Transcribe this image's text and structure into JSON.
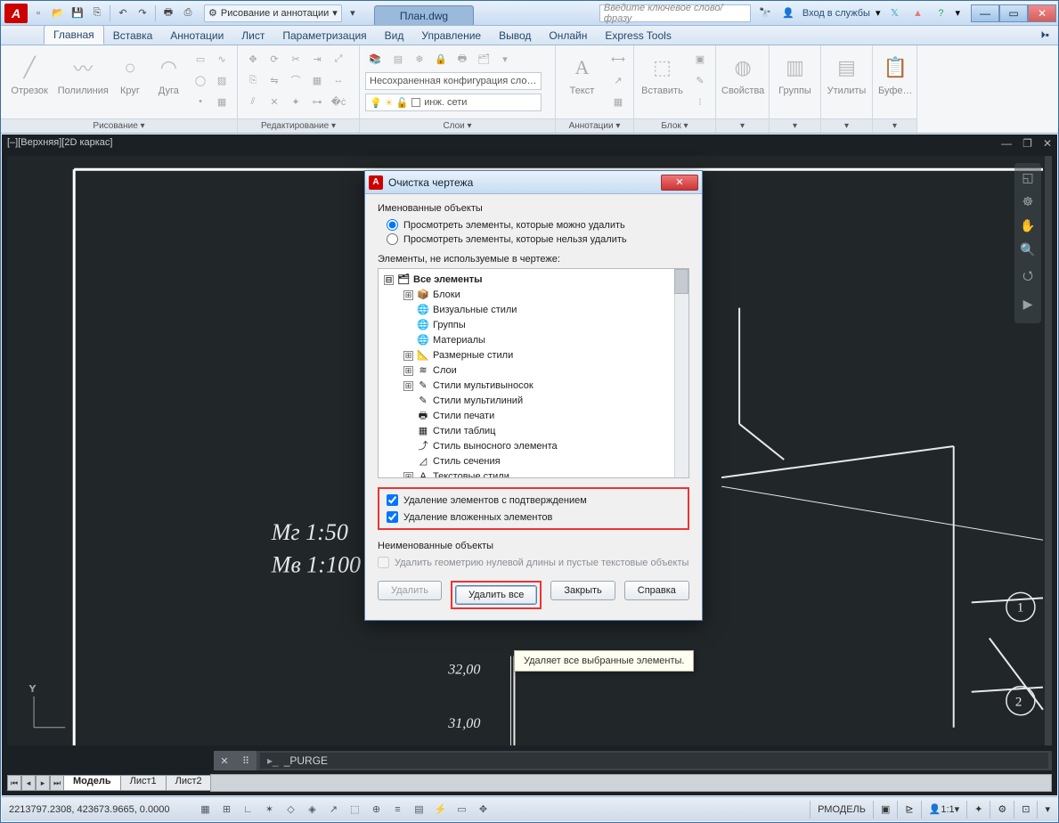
{
  "window": {
    "doc_tab": "План.dwg",
    "search_placeholder": "Введите ключевое слово/фразу",
    "sign_in": "Вход в службы",
    "workspace": "Рисование и аннотации"
  },
  "ribbon_tabs": [
    "Главная",
    "Вставка",
    "Аннотации",
    "Лист",
    "Параметризация",
    "Вид",
    "Управление",
    "Вывод",
    "Онлайн",
    "Express Tools"
  ],
  "ribbon": {
    "draw": {
      "title": "Рисование ▾",
      "btns": [
        "Отрезок",
        "Полилиния",
        "Круг",
        "Дуга"
      ]
    },
    "edit": {
      "title": "Редактирование ▾"
    },
    "layers": {
      "title": "Слои ▾",
      "current": "Несохраненная конфигурация сло…",
      "row2": "инж. сети"
    },
    "annot": {
      "title": "Аннотации ▾",
      "btn": "Текст"
    },
    "block": {
      "title": "Блок ▾",
      "btn": "Вставить"
    },
    "props": {
      "title": "Свойства"
    },
    "groups": {
      "title": "Группы"
    },
    "utils": {
      "title": "Утилиты"
    },
    "clip": {
      "title": "Буфе…"
    }
  },
  "viewport": {
    "title": "[–][Верхняя][2D каркас]",
    "texts": {
      "mg": "Мг 1:50",
      "mv": "Мв 1:100",
      "n1": "32,00",
      "n2": "31,00"
    }
  },
  "dialog": {
    "title": "Очистка чертежа",
    "group1": "Именованные объекты",
    "radio1": "Просмотреть элементы, которые можно удалить",
    "radio2": "Просмотреть элементы, которые нельзя удалить",
    "tree_label": "Элементы, не используемые в чертеже:",
    "tree": [
      {
        "exp": "⊟",
        "icon": "🗂",
        "label": "Все элементы",
        "root": true
      },
      {
        "exp": "⊞",
        "icon": "📦",
        "label": "Блоки"
      },
      {
        "exp": "",
        "icon": "🌐",
        "label": "Визуальные стили"
      },
      {
        "exp": "",
        "icon": "🌐",
        "label": "Группы"
      },
      {
        "exp": "",
        "icon": "🌐",
        "label": "Материалы"
      },
      {
        "exp": "⊞",
        "icon": "📐",
        "label": "Размерные стили"
      },
      {
        "exp": "⊞",
        "icon": "≋",
        "label": "Слои"
      },
      {
        "exp": "⊞",
        "icon": "✎",
        "label": "Стили мультивыносок"
      },
      {
        "exp": "",
        "icon": "✎",
        "label": "Стили мультилиний"
      },
      {
        "exp": "",
        "icon": "🖶",
        "label": "Стили печати"
      },
      {
        "exp": "",
        "icon": "▦",
        "label": "Стили таблиц"
      },
      {
        "exp": "",
        "icon": "⤴",
        "label": "Стиль выносного элемента"
      },
      {
        "exp": "",
        "icon": "◿",
        "label": "Стиль сечения"
      },
      {
        "exp": "⊞",
        "icon": "A",
        "label": "Текстовые стили"
      }
    ],
    "chk1": "Удаление элементов с подтверждением",
    "chk2": "Удаление вложенных элементов",
    "group2": "Неименованные объекты",
    "chk3": "Удалить геометрию нулевой длины и пустые текстовые объекты",
    "btns": {
      "del": "Удалить",
      "del_all": "Удалить все",
      "close": "Закрыть",
      "help": "Справка"
    },
    "tooltip": "Удаляет все выбранные элементы."
  },
  "cmd": {
    "text": "_PURGE"
  },
  "model_tabs": [
    "Модель",
    "Лист1",
    "Лист2"
  ],
  "status": {
    "coords": "2213797.2308, 423673.9665, 0.0000",
    "model": "РМОДЕЛЬ",
    "scale": "1:1"
  }
}
